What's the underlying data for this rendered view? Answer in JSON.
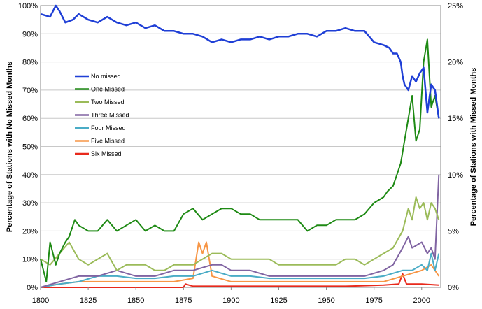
{
  "chart_data": {
    "type": "line",
    "title": "",
    "xlabel": "",
    "ylabel": "Percentage of Stations with No Missed Months",
    "y2label": "Percentage of Stations with Missed Months",
    "xlim": [
      1800,
      2010
    ],
    "ylim": [
      0,
      100
    ],
    "y2lim": [
      0,
      25
    ],
    "x_ticks": [
      1800,
      1825,
      1850,
      1875,
      1900,
      1925,
      1950,
      1975,
      2000
    ],
    "y_ticks": [
      "0%",
      "10%",
      "20%",
      "30%",
      "40%",
      "50%",
      "60%",
      "70%",
      "80%",
      "90%",
      "100%"
    ],
    "y2_ticks": [
      "0%",
      "5%",
      "10%",
      "15%",
      "20%",
      "25%"
    ],
    "grid": "horizontal",
    "legend_position": "left-middle",
    "series": [
      {
        "name": "No missed",
        "axis": "left",
        "color": "#1f3fd6",
        "x": [
          1800,
          1805,
          1808,
          1810,
          1813,
          1817,
          1820,
          1825,
          1830,
          1835,
          1840,
          1845,
          1850,
          1855,
          1860,
          1865,
          1870,
          1875,
          1880,
          1885,
          1890,
          1895,
          1900,
          1905,
          1910,
          1915,
          1920,
          1925,
          1930,
          1935,
          1940,
          1945,
          1950,
          1955,
          1960,
          1965,
          1970,
          1975,
          1980,
          1983,
          1985,
          1987,
          1989,
          1990,
          1991,
          1993,
          1995,
          1997,
          1999,
          2001,
          2003,
          2005,
          2007,
          2009
        ],
        "values": [
          97,
          96,
          100,
          98,
          94,
          95,
          97,
          95,
          94,
          96,
          94,
          93,
          94,
          92,
          93,
          91,
          91,
          90,
          90,
          89,
          87,
          88,
          87,
          88,
          88,
          89,
          88,
          89,
          89,
          90,
          90,
          89,
          91,
          91,
          92,
          91,
          91,
          87,
          86,
          85,
          83,
          83,
          80,
          75,
          72,
          70,
          75,
          73,
          76,
          78,
          62,
          72,
          70,
          60
        ]
      },
      {
        "name": "One Missed",
        "axis": "right",
        "color": "#1e8a14",
        "x": [
          1800,
          1803,
          1805,
          1808,
          1810,
          1813,
          1815,
          1818,
          1820,
          1825,
          1830,
          1835,
          1840,
          1845,
          1850,
          1855,
          1860,
          1865,
          1870,
          1875,
          1880,
          1885,
          1890,
          1895,
          1900,
          1905,
          1910,
          1915,
          1920,
          1925,
          1930,
          1935,
          1940,
          1945,
          1950,
          1955,
          1960,
          1965,
          1970,
          1975,
          1980,
          1982,
          1985,
          1987,
          1989,
          1991,
          1993,
          1995,
          1997,
          1999,
          2001,
          2003,
          2005,
          2007,
          2009
        ],
        "values": [
          2.5,
          0.5,
          4.0,
          2.0,
          3.0,
          4.0,
          4.5,
          6.0,
          5.5,
          5.0,
          5.0,
          6.0,
          5.0,
          5.5,
          6.0,
          5.0,
          5.5,
          5.0,
          5.0,
          6.5,
          7.0,
          6.0,
          6.5,
          7.0,
          7.0,
          6.5,
          6.5,
          6.0,
          6.0,
          6.0,
          6.0,
          6.0,
          5.0,
          5.5,
          5.5,
          6.0,
          6.0,
          6.0,
          6.5,
          7.5,
          8.0,
          8.5,
          9.0,
          10.0,
          11.0,
          13.0,
          15.0,
          17.0,
          13.0,
          14.0,
          20.0,
          22.0,
          16.0,
          17.0,
          15.0
        ]
      },
      {
        "name": "Two Missed",
        "axis": "right",
        "color": "#9bbb59",
        "x": [
          1800,
          1805,
          1810,
          1815,
          1820,
          1825,
          1830,
          1835,
          1840,
          1845,
          1850,
          1855,
          1860,
          1865,
          1870,
          1875,
          1880,
          1885,
          1890,
          1895,
          1900,
          1905,
          1910,
          1915,
          1920,
          1925,
          1930,
          1935,
          1940,
          1945,
          1950,
          1955,
          1960,
          1965,
          1970,
          1975,
          1980,
          1985,
          1990,
          1993,
          1995,
          1997,
          1999,
          2001,
          2003,
          2005,
          2007,
          2009
        ],
        "values": [
          2.5,
          2.0,
          3.0,
          4.0,
          2.5,
          2.0,
          2.5,
          3.0,
          1.5,
          2.0,
          2.0,
          2.0,
          1.5,
          1.5,
          2.0,
          2.0,
          2.0,
          2.5,
          3.0,
          3.0,
          2.5,
          2.5,
          2.5,
          2.5,
          2.5,
          2.0,
          2.0,
          2.0,
          2.0,
          2.0,
          2.0,
          2.0,
          2.5,
          2.5,
          2.0,
          2.5,
          3.0,
          3.5,
          5.0,
          7.0,
          6.0,
          8.0,
          7.0,
          7.5,
          6.0,
          7.5,
          7.0,
          6.0
        ]
      },
      {
        "name": "Three Missed",
        "axis": "right",
        "color": "#8064a2",
        "x": [
          1800,
          1810,
          1820,
          1830,
          1840,
          1850,
          1860,
          1870,
          1880,
          1890,
          1895,
          1900,
          1910,
          1920,
          1930,
          1940,
          1950,
          1960,
          1970,
          1980,
          1985,
          1990,
          1993,
          1995,
          2000,
          2003,
          2005,
          2007,
          2009
        ],
        "values": [
          0,
          0.5,
          1.0,
          1.0,
          1.5,
          1.0,
          1.0,
          1.5,
          1.5,
          2.0,
          2.0,
          1.5,
          1.5,
          1.0,
          1.0,
          1.0,
          1.0,
          1.0,
          1.0,
          1.5,
          2.0,
          3.5,
          4.5,
          3.5,
          4.0,
          3.0,
          3.5,
          2.5,
          10.0
        ]
      },
      {
        "name": "Four Missed",
        "axis": "right",
        "color": "#4aacc6",
        "x": [
          1800,
          1810,
          1820,
          1830,
          1840,
          1850,
          1860,
          1870,
          1880,
          1890,
          1900,
          1910,
          1920,
          1930,
          1940,
          1950,
          1960,
          1970,
          1980,
          1990,
          1995,
          2000,
          2003,
          2005,
          2007,
          2009
        ],
        "values": [
          0,
          0.3,
          0.5,
          1.0,
          1.0,
          0.8,
          0.8,
          1.0,
          1.0,
          1.5,
          1.0,
          1.0,
          0.8,
          0.8,
          0.8,
          0.8,
          0.8,
          0.8,
          1.0,
          1.5,
          1.5,
          2.0,
          1.5,
          3.0,
          1.5,
          3.0
        ]
      },
      {
        "name": "Five Missed",
        "axis": "right",
        "color": "#f79646",
        "x": [
          1800,
          1810,
          1820,
          1830,
          1840,
          1850,
          1860,
          1870,
          1880,
          1883,
          1885,
          1887,
          1890,
          1900,
          1910,
          1920,
          1930,
          1940,
          1950,
          1960,
          1970,
          1980,
          1990,
          2000,
          2005,
          2009
        ],
        "values": [
          0,
          0.3,
          0.5,
          0.5,
          0.5,
          0.5,
          0.5,
          0.5,
          0.8,
          4.0,
          3.0,
          4.0,
          1.0,
          0.5,
          0.5,
          0.5,
          0.5,
          0.5,
          0.5,
          0.5,
          0.5,
          0.5,
          1.0,
          1.5,
          2.0,
          1.0
        ]
      },
      {
        "name": "Six Missed",
        "axis": "right",
        "color": "#e8291c",
        "x": [
          1800,
          1820,
          1840,
          1860,
          1870,
          1875,
          1876,
          1880,
          1900,
          1920,
          1940,
          1960,
          1980,
          1988,
          1990,
          1992,
          2000,
          2009
        ],
        "values": [
          0,
          0,
          0,
          0,
          0,
          0,
          0.3,
          0.1,
          0.1,
          0.1,
          0.1,
          0.1,
          0.2,
          0.3,
          1.2,
          0.3,
          0.3,
          0.2
        ]
      }
    ]
  }
}
